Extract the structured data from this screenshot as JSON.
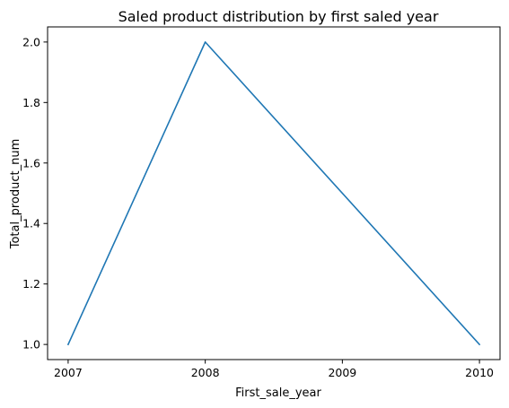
{
  "chart_data": {
    "type": "line",
    "title": "Saled product distribution by first saled year",
    "xlabel": "First_sale_year",
    "ylabel": "Total_product_num",
    "x": [
      2007,
      2008,
      2009,
      2010
    ],
    "xticks": [
      "2007",
      "2008",
      "2009",
      "2010"
    ],
    "xlim": [
      2006.85,
      2010.15
    ],
    "ylim": [
      0.95,
      2.05
    ],
    "yticks": [
      1.0,
      1.2,
      1.4,
      1.6,
      1.8,
      2.0
    ],
    "ytick_labels": [
      "1.0",
      "1.2",
      "1.4",
      "1.6",
      "1.8",
      "2.0"
    ],
    "grid": false,
    "legend": "none",
    "series": [
      {
        "color": "#1f77b4",
        "x": [
          2007,
          2008,
          2010
        ],
        "values": [
          1,
          2,
          1
        ]
      }
    ]
  }
}
